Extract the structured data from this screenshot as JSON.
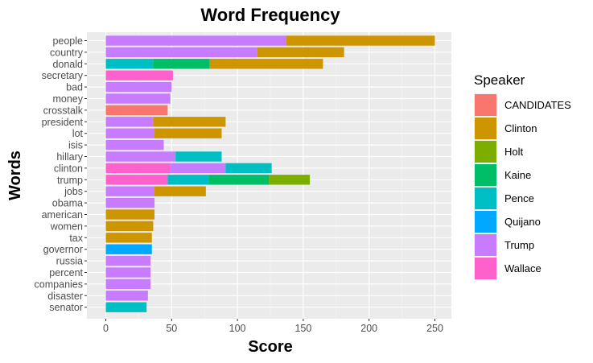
{
  "chart_data": {
    "type": "bar",
    "orientation": "horizontal",
    "stacked": true,
    "title": "Word Frequency",
    "xlabel": "Score",
    "ylabel": "Words",
    "xlim": [
      0,
      262
    ],
    "x_ticks": [
      0,
      50,
      100,
      150,
      200,
      250
    ],
    "grid": true,
    "legend_position": "right",
    "legend_title": "Speaker",
    "speakers": [
      "CANDIDATES",
      "Clinton",
      "Holt",
      "Kaine",
      "Pence",
      "Quijano",
      "Trump",
      "Wallace"
    ],
    "colors": {
      "CANDIDATES": "#F8766D",
      "Clinton": "#CD9600",
      "Holt": "#7CAE00",
      "Kaine": "#00BE67",
      "Pence": "#00BFC4",
      "Quijano": "#00A9FF",
      "Trump": "#C77CFF",
      "Wallace": "#FF61CC"
    },
    "categories": [
      "people",
      "country",
      "donald",
      "secretary",
      "bad",
      "money",
      "crosstalk",
      "president",
      "lot",
      "isis",
      "hillary",
      "clinton",
      "trump",
      "jobs",
      "obama",
      "american",
      "women",
      "tax",
      "governor",
      "russia",
      "percent",
      "companies",
      "disaster",
      "senator"
    ],
    "bars": [
      {
        "word": "people",
        "segments": [
          {
            "speaker": "Trump",
            "value": 137
          },
          {
            "speaker": "Clinton",
            "value": 113
          }
        ]
      },
      {
        "word": "country",
        "segments": [
          {
            "speaker": "Trump",
            "value": 115
          },
          {
            "speaker": "Clinton",
            "value": 66
          }
        ]
      },
      {
        "word": "donald",
        "segments": [
          {
            "speaker": "Pence",
            "value": 36
          },
          {
            "speaker": "Kaine",
            "value": 43
          },
          {
            "speaker": "Clinton",
            "value": 86
          }
        ]
      },
      {
        "word": "secretary",
        "segments": [
          {
            "speaker": "Wallace",
            "value": 51
          }
        ]
      },
      {
        "word": "bad",
        "segments": [
          {
            "speaker": "Trump",
            "value": 50
          }
        ]
      },
      {
        "word": "money",
        "segments": [
          {
            "speaker": "Trump",
            "value": 49
          }
        ]
      },
      {
        "word": "crosstalk",
        "segments": [
          {
            "speaker": "CANDIDATES",
            "value": 47
          }
        ]
      },
      {
        "word": "president",
        "segments": [
          {
            "speaker": "Trump",
            "value": 36
          },
          {
            "speaker": "Clinton",
            "value": 55
          }
        ]
      },
      {
        "word": "lot",
        "segments": [
          {
            "speaker": "Trump",
            "value": 37
          },
          {
            "speaker": "Clinton",
            "value": 51
          }
        ]
      },
      {
        "word": "isis",
        "segments": [
          {
            "speaker": "Trump",
            "value": 44
          }
        ]
      },
      {
        "word": "hillary",
        "segments": [
          {
            "speaker": "Trump",
            "value": 53
          },
          {
            "speaker": "Pence",
            "value": 35
          }
        ]
      },
      {
        "word": "clinton",
        "segments": [
          {
            "speaker": "Wallace",
            "value": 49
          },
          {
            "speaker": "Trump",
            "value": 42
          },
          {
            "speaker": "Pence",
            "value": 35
          }
        ]
      },
      {
        "word": "trump",
        "segments": [
          {
            "speaker": "Wallace",
            "value": 47
          },
          {
            "speaker": "Pence",
            "value": 31
          },
          {
            "speaker": "Kaine",
            "value": 46
          },
          {
            "speaker": "Holt",
            "value": 31
          }
        ]
      },
      {
        "word": "jobs",
        "segments": [
          {
            "speaker": "Trump",
            "value": 37
          },
          {
            "speaker": "Clinton",
            "value": 39
          }
        ]
      },
      {
        "word": "obama",
        "segments": [
          {
            "speaker": "Trump",
            "value": 37
          }
        ]
      },
      {
        "word": "american",
        "segments": [
          {
            "speaker": "Clinton",
            "value": 37
          }
        ]
      },
      {
        "word": "women",
        "segments": [
          {
            "speaker": "Clinton",
            "value": 36
          }
        ]
      },
      {
        "word": "tax",
        "segments": [
          {
            "speaker": "Clinton",
            "value": 35
          }
        ]
      },
      {
        "word": "governor",
        "segments": [
          {
            "speaker": "Quijano",
            "value": 35
          }
        ]
      },
      {
        "word": "russia",
        "segments": [
          {
            "speaker": "Trump",
            "value": 34
          }
        ]
      },
      {
        "word": "percent",
        "segments": [
          {
            "speaker": "Trump",
            "value": 34
          }
        ]
      },
      {
        "word": "companies",
        "segments": [
          {
            "speaker": "Trump",
            "value": 34
          }
        ]
      },
      {
        "word": "disaster",
        "segments": [
          {
            "speaker": "Trump",
            "value": 32
          }
        ]
      },
      {
        "word": "senator",
        "segments": [
          {
            "speaker": "Pence",
            "value": 31
          }
        ]
      }
    ]
  }
}
